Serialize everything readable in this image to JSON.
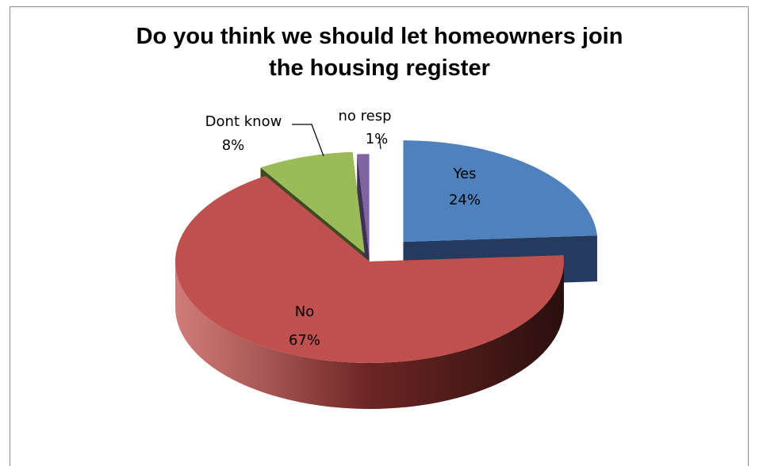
{
  "chart_data": {
    "type": "pie",
    "title": "Do you think we should let homeowners join\nthe housing register",
    "style": "3d-exploded",
    "slices": [
      {
        "label": "Yes",
        "value": 24,
        "display": "24%",
        "color": "#4f81bd",
        "side_color": "#243a5e"
      },
      {
        "label": "No",
        "value": 67,
        "display": "67%",
        "color": "#c0504d",
        "side_color": "#6b2523"
      },
      {
        "label": "Dont know",
        "value": 8,
        "display": "8%",
        "color": "#9bbb59",
        "side_color": "#3e4a22"
      },
      {
        "label": "no resp",
        "value": 1,
        "display": "1%",
        "color": "#8064a2",
        "side_color": "#3f3056"
      }
    ],
    "legend": "none"
  }
}
